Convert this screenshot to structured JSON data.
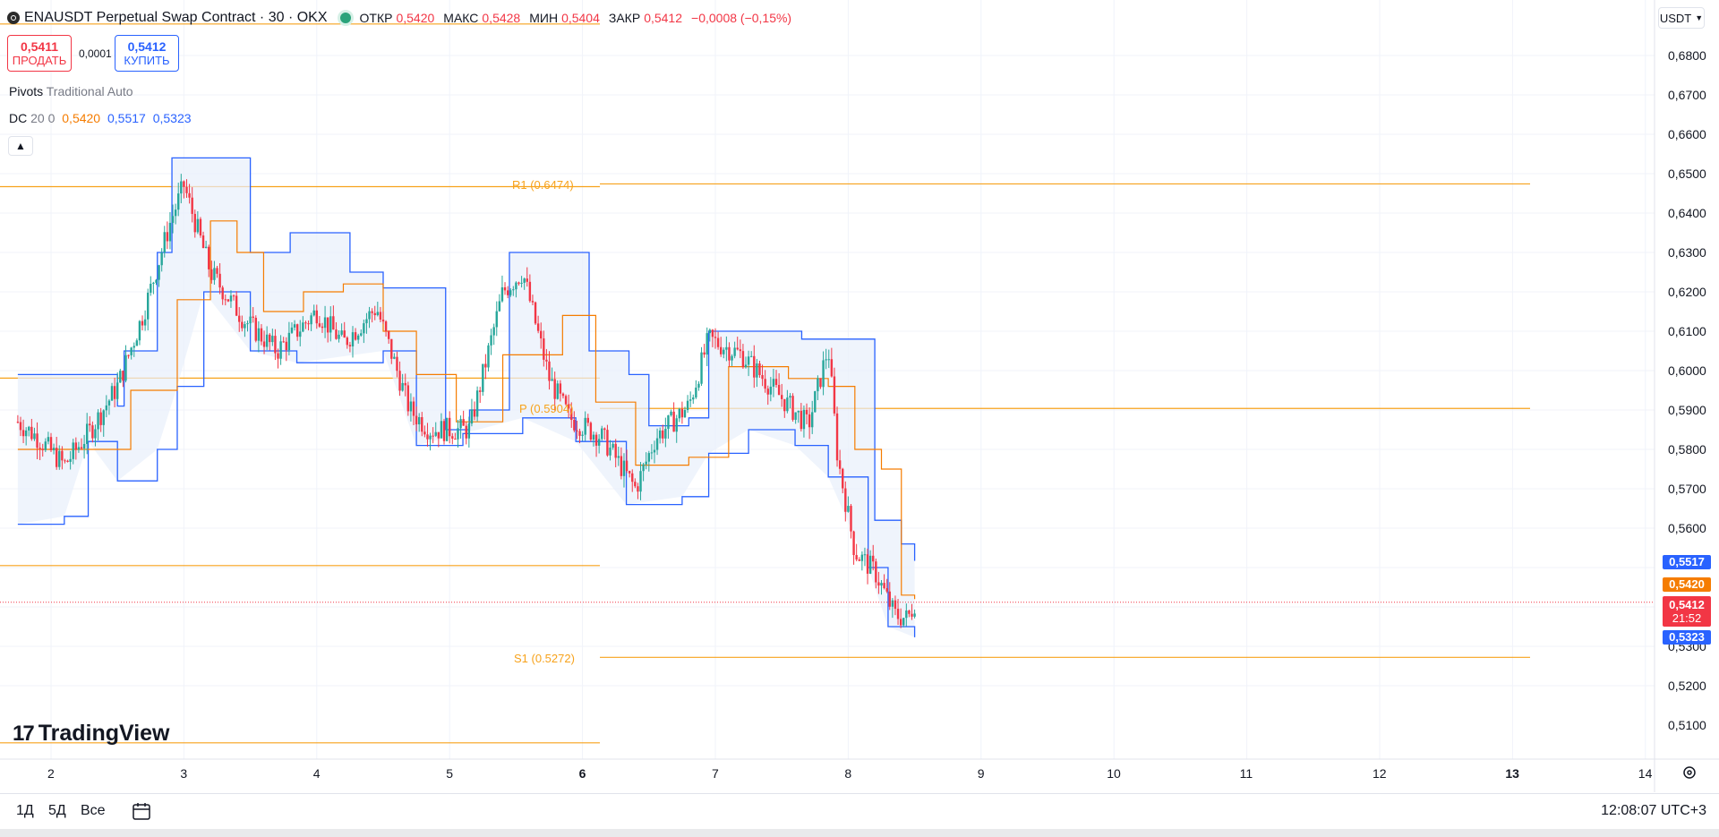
{
  "header": {
    "symbol_title": "ENAUSDT Perpetual Swap Contract · 30 · OKX",
    "ohlc": [
      {
        "label": "ОТКР",
        "value": "0,5420"
      },
      {
        "label": "МАКС",
        "value": "0,5428"
      },
      {
        "label": "МИН",
        "value": "0,5404"
      },
      {
        "label": "ЗАКР",
        "value": "0,5412"
      }
    ],
    "change": "−0,0008 (−0,15%)"
  },
  "trade": {
    "sell_price": "0,5411",
    "sell_label": "ПРОДАТЬ",
    "spread": "0,0001",
    "buy_price": "0,5412",
    "buy_label": "КУПИТЬ"
  },
  "indicators": {
    "pivots_name": "Pivots",
    "pivots_params": "Traditional Auto",
    "dc_name": "DC",
    "dc_params": "20 0",
    "dc_values": [
      "0,5420",
      "0,5517",
      "0,5323"
    ]
  },
  "currency": "USDT",
  "price_axis": {
    "ticks": [
      "0,6800",
      "0,6700",
      "0,6600",
      "0,6500",
      "0,6400",
      "0,6300",
      "0,6200",
      "0,6100",
      "0,6000",
      "0,5900",
      "0,5800",
      "0,5700",
      "0,5600",
      "0,5300",
      "0,5200",
      "0,5100"
    ]
  },
  "price_tags": {
    "upper": "0,5517",
    "middle": "0,5420",
    "last": "0,5412",
    "countdown": "21:52",
    "lower": "0,5323"
  },
  "time_axis": {
    "ticks": [
      "2",
      "3",
      "4",
      "5",
      "6",
      "7",
      "8",
      "9",
      "10",
      "11",
      "12",
      "13",
      "14"
    ]
  },
  "pivot_labels": {
    "r1": "R1 (0.6474)",
    "p": "P (0.5904)",
    "s1": "S1 (0.5272)"
  },
  "colors": {
    "up": "#26a69a",
    "down": "#f23645",
    "dc_basis": "#f57c00",
    "dc_band": "#2962ff",
    "pivot": "#f7a21b",
    "band_fill": "#e8f0fb"
  },
  "bottom_bar": {
    "ranges": [
      "1Д",
      "5Д",
      "Все"
    ],
    "clock": "12:08:07 UTC+3"
  },
  "logo_text": "TradingView",
  "chart_data": {
    "type": "candlestick",
    "ylim": [
      0.505,
      0.688
    ],
    "last_price": 0.5412,
    "pivots": [
      {
        "name": "R1",
        "value": 0.6474
      },
      {
        "name": "P",
        "value": 0.5904
      },
      {
        "name": "S1",
        "value": 0.5272
      }
    ],
    "donchian_upper": [
      [
        1.75,
        0.599
      ],
      [
        2.3,
        0.599
      ],
      [
        2.5,
        0.591
      ],
      [
        2.55,
        0.605
      ],
      [
        2.8,
        0.63
      ],
      [
        2.91,
        0.654
      ],
      [
        3.35,
        0.654
      ],
      [
        3.5,
        0.63
      ],
      [
        3.8,
        0.635
      ],
      [
        4.22,
        0.635
      ],
      [
        4.25,
        0.625
      ],
      [
        4.5,
        0.621
      ],
      [
        4.75,
        0.621
      ],
      [
        4.97,
        0.585
      ],
      [
        5.15,
        0.59
      ],
      [
        5.45,
        0.63
      ],
      [
        5.9,
        0.63
      ],
      [
        6.05,
        0.605
      ],
      [
        6.3,
        0.605
      ],
      [
        6.35,
        0.599
      ],
      [
        6.5,
        0.586
      ],
      [
        6.8,
        0.588
      ],
      [
        6.95,
        0.61
      ],
      [
        7.3,
        0.61
      ],
      [
        7.65,
        0.608
      ],
      [
        8.1,
        0.608
      ],
      [
        8.2,
        0.562
      ],
      [
        8.4,
        0.556
      ],
      [
        8.5,
        0.5517
      ]
    ],
    "donchian_lower": [
      [
        1.75,
        0.561
      ],
      [
        2.1,
        0.563
      ],
      [
        2.28,
        0.582
      ],
      [
        2.5,
        0.572
      ],
      [
        2.8,
        0.58
      ],
      [
        2.95,
        0.596
      ],
      [
        3.15,
        0.62
      ],
      [
        3.5,
        0.605
      ],
      [
        3.85,
        0.602
      ],
      [
        4.5,
        0.605
      ],
      [
        4.75,
        0.581
      ],
      [
        5.1,
        0.584
      ],
      [
        5.55,
        0.588
      ],
      [
        5.95,
        0.582
      ],
      [
        6.33,
        0.566
      ],
      [
        6.75,
        0.568
      ],
      [
        6.95,
        0.579
      ],
      [
        7.25,
        0.585
      ],
      [
        7.6,
        0.581
      ],
      [
        7.85,
        0.573
      ],
      [
        8.15,
        0.55
      ],
      [
        8.3,
        0.535
      ],
      [
        8.5,
        0.5323
      ]
    ],
    "donchian_basis": [
      [
        1.75,
        0.58
      ],
      [
        2.1,
        0.58
      ],
      [
        2.5,
        0.58
      ],
      [
        2.6,
        0.595
      ],
      [
        2.95,
        0.618
      ],
      [
        3.2,
        0.638
      ],
      [
        3.4,
        0.63
      ],
      [
        3.6,
        0.615
      ],
      [
        3.9,
        0.62
      ],
      [
        4.2,
        0.622
      ],
      [
        4.5,
        0.61
      ],
      [
        4.75,
        0.599
      ],
      [
        5.05,
        0.587
      ],
      [
        5.4,
        0.604
      ],
      [
        5.85,
        0.614
      ],
      [
        6.1,
        0.592
      ],
      [
        6.4,
        0.576
      ],
      [
        6.8,
        0.578
      ],
      [
        7.1,
        0.601
      ],
      [
        7.55,
        0.598
      ],
      [
        7.85,
        0.596
      ],
      [
        8.05,
        0.58
      ],
      [
        8.25,
        0.575
      ],
      [
        8.4,
        0.543
      ],
      [
        8.5,
        0.542
      ]
    ],
    "close_path": [
      [
        1.75,
        0.587
      ],
      [
        1.9,
        0.583
      ],
      [
        2.1,
        0.576
      ],
      [
        2.3,
        0.585
      ],
      [
        2.5,
        0.596
      ],
      [
        2.7,
        0.615
      ],
      [
        2.9,
        0.638
      ],
      [
        3.0,
        0.647
      ],
      [
        3.2,
        0.625
      ],
      [
        3.45,
        0.613
      ],
      [
        3.7,
        0.605
      ],
      [
        4.0,
        0.615
      ],
      [
        4.2,
        0.607
      ],
      [
        4.45,
        0.616
      ],
      [
        4.7,
        0.59
      ],
      [
        4.85,
        0.585
      ],
      [
        5.15,
        0.585
      ],
      [
        5.4,
        0.62
      ],
      [
        5.55,
        0.625
      ],
      [
        5.75,
        0.598
      ],
      [
        5.9,
        0.588
      ],
      [
        6.15,
        0.583
      ],
      [
        6.4,
        0.57
      ],
      [
        6.55,
        0.583
      ],
      [
        6.8,
        0.591
      ],
      [
        6.95,
        0.608
      ],
      [
        7.2,
        0.604
      ],
      [
        7.5,
        0.593
      ],
      [
        7.7,
        0.586
      ],
      [
        7.85,
        0.606
      ],
      [
        7.92,
        0.578
      ],
      [
        8.05,
        0.554
      ],
      [
        8.2,
        0.549
      ],
      [
        8.35,
        0.538
      ],
      [
        8.45,
        0.537
      ],
      [
        8.5,
        0.5412
      ]
    ]
  }
}
